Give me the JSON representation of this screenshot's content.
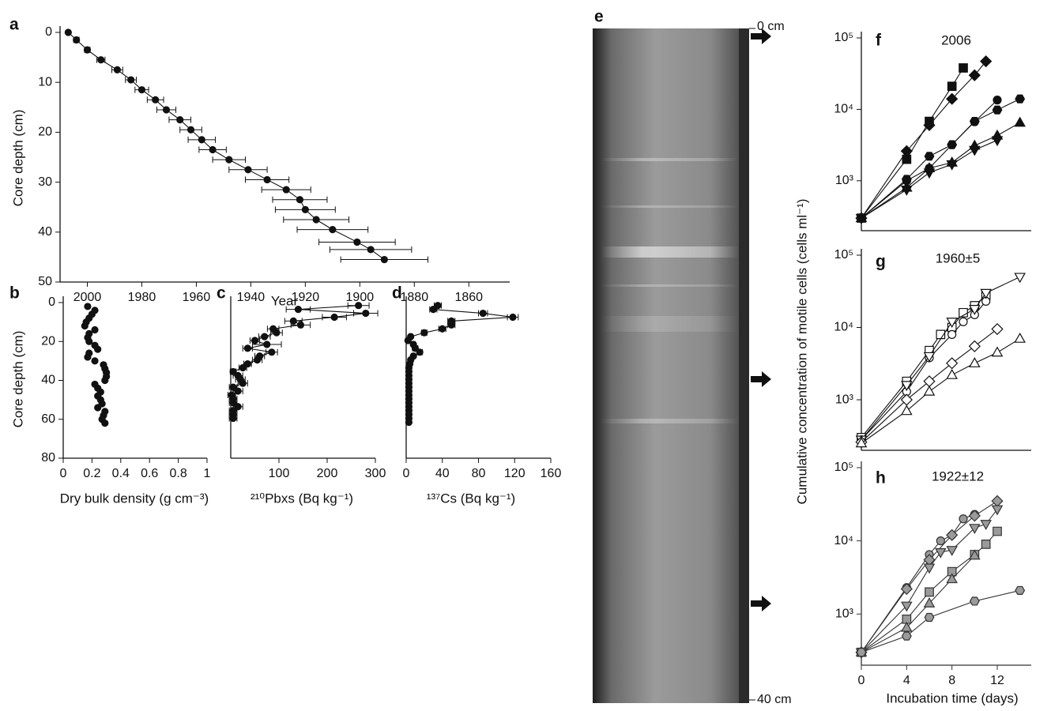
{
  "chart_data": [
    {
      "type": "scatter",
      "panel_label": "a",
      "xlabel": "Year",
      "ylabel": "Core depth (cm)",
      "xlim": [
        2010,
        1845
      ],
      "ylim": [
        50,
        0
      ],
      "xticks": [
        2000,
        1980,
        1960,
        1940,
        1920,
        1900,
        1880,
        1860
      ],
      "yticks": [
        0,
        10,
        20,
        30,
        40,
        50
      ],
      "line": true,
      "edge_color": "#111",
      "series": [
        {
          "color": "#111",
          "marker": "circle",
          "x": [
            2007,
            2004,
            2000,
            1995,
            1989,
            1984,
            1980,
            1975,
            1971,
            1966,
            1962,
            1958,
            1954,
            1948,
            1941,
            1934,
            1927,
            1922,
            1920,
            1916,
            1910,
            1901,
            1896,
            1891
          ],
          "values": [
            0,
            1.5,
            3.5,
            5.5,
            7.5,
            9.5,
            11.5,
            13.5,
            15.5,
            17.5,
            19.5,
            21.5,
            23.5,
            25.5,
            27.5,
            29.5,
            31.5,
            33.5,
            35.5,
            37.5,
            39.5,
            42,
            43.5,
            45.5
          ],
          "xerr": [
            0,
            1,
            1,
            1.5,
            2,
            2,
            2.5,
            3,
            3.5,
            4,
            4,
            5,
            5,
            6,
            7,
            8,
            9,
            10,
            11,
            12,
            13,
            14,
            15,
            16
          ]
        }
      ]
    },
    {
      "type": "scatter",
      "panel_label": "b",
      "xlabel": "Dry bulk density (g cm⁻³)",
      "ylabel": "Core depth (cm)",
      "xlim": [
        0,
        1
      ],
      "ylim": [
        80,
        0
      ],
      "xticks": [
        0,
        0.2,
        0.4,
        0.6,
        0.8,
        1
      ],
      "yticks": [
        0,
        20,
        40,
        60,
        80
      ],
      "line": false,
      "edge_color": "#111",
      "series": [
        {
          "color": "#111",
          "marker": "circle",
          "x": [
            0.17,
            0.22,
            0.2,
            0.18,
            0.16,
            0.15,
            0.22,
            0.18,
            0.17,
            0.18,
            0.22,
            0.24,
            0.18,
            0.17,
            0.22,
            0.28,
            0.29,
            0.3,
            0.3,
            0.29,
            0.22,
            0.24,
            0.26,
            0.24,
            0.26,
            0.27,
            0.24,
            0.29,
            0.28,
            0.27,
            0.29
          ],
          "values": [
            2,
            4,
            6,
            8,
            10,
            12,
            14,
            16,
            18,
            20,
            22,
            24,
            26,
            28,
            30,
            32,
            34,
            36,
            38,
            40,
            42,
            44,
            46,
            48,
            50,
            52,
            54,
            56,
            58,
            60,
            62
          ]
        }
      ]
    },
    {
      "type": "scatter",
      "panel_label": "c",
      "xlabel": "²¹⁰Pbxs (Bq kg⁻¹)",
      "xlim": [
        0,
        300
      ],
      "ylim": [
        80,
        0
      ],
      "xticks": [
        100,
        200,
        300
      ],
      "line": true,
      "edge_color": "#111",
      "series": [
        {
          "color": "#111",
          "marker": "circle",
          "x": [
            265,
            140,
            280,
            215,
            130,
            145,
            88,
            95,
            70,
            50,
            75,
            35,
            85,
            60,
            55,
            35,
            25,
            5,
            15,
            20,
            25,
            5,
            15,
            2,
            5,
            5,
            15,
            5,
            5,
            5
          ],
          "values": [
            1.5,
            3.5,
            5.5,
            7.5,
            9.5,
            11.5,
            13.5,
            15.5,
            17.5,
            19.5,
            21.5,
            23.5,
            25.5,
            27.5,
            29.5,
            31.5,
            33.5,
            35.5,
            37.5,
            39.5,
            41.5,
            43.5,
            45.5,
            47.5,
            49.5,
            51.5,
            53.5,
            55.5,
            57.5,
            59.5
          ],
          "xerr": [
            22,
            25,
            25,
            25,
            18,
            20,
            12,
            12,
            12,
            10,
            30,
            10,
            12,
            10,
            10,
            8,
            8,
            6,
            10,
            10,
            10,
            8,
            10,
            8,
            8,
            8,
            10,
            8,
            8,
            8
          ]
        }
      ]
    },
    {
      "type": "scatter",
      "panel_label": "d",
      "xlabel": "¹³⁷Cs (Bq kg⁻¹)",
      "xlim": [
        0,
        160
      ],
      "ylim": [
        80,
        0
      ],
      "xticks": [
        0,
        40,
        80,
        120,
        160
      ],
      "line": true,
      "edge_color": "#111",
      "series": [
        {
          "color": "#111",
          "marker": "circle",
          "x": [
            35,
            30,
            85,
            118,
            50,
            50,
            40,
            20,
            5,
            2,
            8,
            10,
            15,
            8,
            5,
            4,
            3,
            3,
            3,
            3,
            3,
            3,
            3,
            3,
            3,
            3,
            3,
            3,
            3,
            3,
            3
          ],
          "values": [
            1.5,
            3.5,
            5.5,
            7.5,
            9.5,
            11.5,
            13.5,
            15.5,
            17.5,
            19.5,
            21.5,
            23.5,
            25.5,
            27.5,
            29.5,
            31.5,
            33.5,
            35.5,
            37.5,
            39.5,
            41.5,
            43.5,
            45.5,
            47.5,
            49.5,
            51.5,
            53.5,
            55.5,
            57.5,
            59.5,
            61.5
          ],
          "xerr": [
            4,
            4,
            5,
            6,
            4,
            4,
            4,
            3,
            2,
            2,
            2,
            3,
            3,
            2,
            2,
            2,
            2,
            2,
            2,
            2,
            2,
            2,
            2,
            2,
            2,
            2,
            2,
            2,
            2,
            2,
            2
          ]
        }
      ]
    },
    {
      "type": "scatter",
      "panel_label": "f",
      "annotation": "2006",
      "ylabel": "Cumulative concentration of motile cells (cells ml⁻¹)",
      "yscale": "log",
      "xlim": [
        0,
        15
      ],
      "ylim": [
        200,
        100000
      ],
      "yticks": [
        {
          "value": 1000,
          "label": "10³"
        },
        {
          "value": 10000,
          "label": "10⁴"
        },
        {
          "value": 100000,
          "label": "10⁵"
        }
      ],
      "line": true,
      "edge_color": "#111",
      "series": [
        {
          "color": "#111",
          "marker": "square",
          "x": [
            0,
            4,
            6,
            8,
            9
          ],
          "values": [
            300,
            2000,
            6800,
            21000,
            38000
          ]
        },
        {
          "color": "#111",
          "marker": "diamond",
          "x": [
            0,
            4,
            6,
            8,
            10,
            11
          ],
          "values": [
            300,
            2600,
            6000,
            14000,
            30000,
            47000
          ]
        },
        {
          "color": "#111",
          "marker": "hexagon",
          "x": [
            0,
            4,
            6,
            8,
            10,
            12,
            14
          ],
          "values": [
            300,
            1050,
            2200,
            3200,
            6800,
            9800,
            14000
          ]
        },
        {
          "color": "#111",
          "marker": "circle",
          "x": [
            0,
            4,
            6,
            8,
            10,
            12
          ],
          "values": [
            300,
            1000,
            1500,
            3200,
            6700,
            13500
          ]
        },
        {
          "color": "#111",
          "marker": "triangle-up",
          "x": [
            0,
            4,
            6,
            8,
            10,
            12,
            14
          ],
          "values": [
            300,
            800,
            1500,
            1800,
            3100,
            4300,
            6500
          ]
        },
        {
          "color": "#111",
          "marker": "triangle-down",
          "x": [
            0,
            4,
            6,
            8,
            10,
            12
          ],
          "values": [
            300,
            750,
            1300,
            1700,
            2700,
            3700
          ]
        }
      ]
    },
    {
      "type": "scatter",
      "panel_label": "g",
      "annotation": "1960±5",
      "yscale": "log",
      "xlim": [
        0,
        15
      ],
      "ylim": [
        200,
        100000
      ],
      "yticks": [
        {
          "value": 1000,
          "label": "10³"
        },
        {
          "value": 10000,
          "label": "10⁴"
        },
        {
          "value": 100000,
          "label": "10⁵"
        }
      ],
      "line": true,
      "edge_color": "#111",
      "series": [
        {
          "color": "#fff",
          "marker": "square",
          "x": [
            0,
            4,
            6,
            7,
            8,
            9,
            10,
            11
          ],
          "values": [
            300,
            1800,
            4800,
            8000,
            10000,
            16000,
            20000,
            28000
          ]
        },
        {
          "color": "#fff",
          "marker": "circle",
          "x": [
            0,
            4,
            6,
            8,
            9,
            10,
            11
          ],
          "values": [
            280,
            1300,
            3800,
            8000,
            12000,
            15000,
            23000
          ]
        },
        {
          "color": "#fff",
          "marker": "triangle-down",
          "x": [
            0,
            4,
            6,
            8,
            10,
            11,
            14
          ],
          "values": [
            280,
            1600,
            4000,
            12000,
            18000,
            30000,
            50000
          ]
        },
        {
          "color": "#fff",
          "marker": "diamond",
          "x": [
            0,
            4,
            6,
            8,
            10,
            12
          ],
          "values": [
            260,
            1000,
            1800,
            3200,
            5500,
            9500
          ]
        },
        {
          "color": "#fff",
          "marker": "triangle-up",
          "x": [
            0,
            4,
            6,
            8,
            10,
            12,
            14
          ],
          "values": [
            250,
            700,
            1300,
            2200,
            3200,
            4500,
            7000
          ]
        }
      ]
    },
    {
      "type": "scatter",
      "panel_label": "h",
      "annotation": "1922±12",
      "xlabel": "Incubation time (days)",
      "yscale": "log",
      "xlim": [
        0,
        15
      ],
      "ylim": [
        200,
        100000
      ],
      "xticks": [
        0,
        4,
        8,
        12
      ],
      "yticks": [
        {
          "value": 1000,
          "label": "10³"
        },
        {
          "value": 10000,
          "label": "10⁴"
        },
        {
          "value": 100000,
          "label": "10⁵"
        }
      ],
      "line": true,
      "edge_color": "#333",
      "series": [
        {
          "color": "#9a9a9a",
          "marker": "circle",
          "x": [
            0,
            4,
            6,
            7,
            8,
            9,
            10
          ],
          "values": [
            300,
            2300,
            6500,
            10000,
            12000,
            20000,
            23000
          ]
        },
        {
          "color": "#9a9a9a",
          "marker": "diamond",
          "x": [
            0,
            4,
            6,
            8,
            10,
            12
          ],
          "values": [
            300,
            2200,
            5500,
            12000,
            22000,
            35000
          ]
        },
        {
          "color": "#9a9a9a",
          "marker": "triangle-down",
          "x": [
            0,
            4,
            6,
            7,
            8,
            10,
            11,
            12
          ],
          "values": [
            300,
            1300,
            4300,
            7000,
            7500,
            15000,
            17000,
            27000
          ]
        },
        {
          "color": "#9a9a9a",
          "marker": "square",
          "x": [
            0,
            4,
            6,
            8,
            10,
            11,
            12
          ],
          "values": [
            300,
            850,
            2000,
            3800,
            6500,
            9000,
            13500
          ]
        },
        {
          "color": "#9a9a9a",
          "marker": "triangle-up",
          "x": [
            0,
            4,
            6,
            8,
            10
          ],
          "values": [
            300,
            650,
            1400,
            3000,
            6300
          ]
        },
        {
          "color": "#9a9a9a",
          "marker": "hexagon",
          "x": [
            0,
            4,
            6,
            10,
            14
          ],
          "values": [
            300,
            500,
            900,
            1500,
            2100
          ]
        }
      ]
    }
  ],
  "core_image": {
    "panel_label": "e",
    "top_label": "0 cm",
    "bottom_label": "40 cm"
  }
}
